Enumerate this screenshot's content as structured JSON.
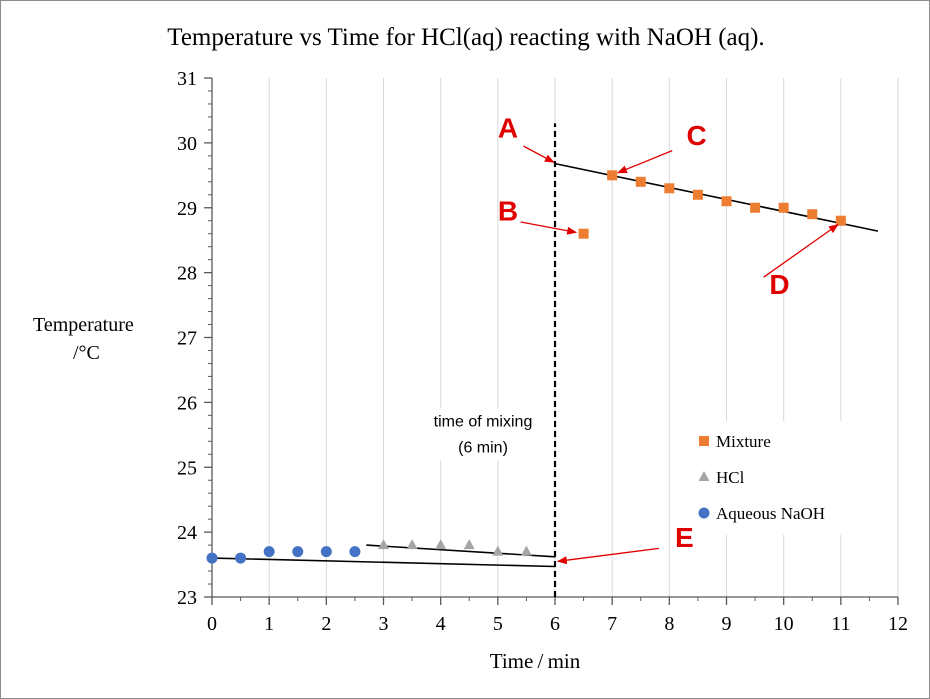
{
  "chart_data": {
    "type": "scatter",
    "title": "Temperature vs Time for HCl(aq) reacting with  NaOH (aq).",
    "xlabel": "Time / min",
    "ylabel_line1": "Temperature",
    "ylabel_line2": "/°C",
    "xlim": [
      0,
      12
    ],
    "ylim": [
      23,
      31
    ],
    "x_ticks": [
      0,
      1,
      2,
      3,
      4,
      5,
      6,
      7,
      8,
      9,
      10,
      11,
      12
    ],
    "y_ticks": [
      23,
      24,
      25,
      26,
      27,
      28,
      29,
      30,
      31
    ],
    "grid": "vertical",
    "series": [
      {
        "name": "Aqueous NaOH",
        "marker": "circle",
        "color": "#4472c4",
        "points": [
          [
            0,
            23.6
          ],
          [
            0.5,
            23.6
          ],
          [
            1,
            23.7
          ],
          [
            1.5,
            23.7
          ],
          [
            2,
            23.7
          ],
          [
            2.5,
            23.7
          ]
        ]
      },
      {
        "name": "HCl",
        "marker": "triangle",
        "color": "#a5a5a5",
        "points": [
          [
            3,
            23.8
          ],
          [
            3.5,
            23.8
          ],
          [
            4,
            23.8
          ],
          [
            4.5,
            23.8
          ],
          [
            5,
            23.7
          ],
          [
            5.5,
            23.7
          ]
        ]
      },
      {
        "name": "Mixture",
        "marker": "square",
        "color": "#ed7d31",
        "points": [
          [
            6.5,
            28.6
          ],
          [
            7,
            29.5
          ],
          [
            7.5,
            29.4
          ],
          [
            8,
            29.3
          ],
          [
            8.5,
            29.2
          ],
          [
            9,
            29.1
          ],
          [
            9.5,
            29.0
          ],
          [
            10,
            29.0
          ],
          [
            10.5,
            28.9
          ],
          [
            11,
            28.8
          ]
        ]
      }
    ],
    "legend": {
      "placement": "lower-right",
      "order": [
        "Mixture",
        "HCl",
        "Aqueous NaOH"
      ]
    },
    "trend_lines": [
      {
        "name": "mixture-trend",
        "from": [
          6,
          29.68
        ],
        "to": [
          11.65,
          28.64
        ]
      },
      {
        "name": "naoh-trend",
        "from": [
          0,
          23.6
        ],
        "to": [
          6,
          23.47
        ]
      },
      {
        "name": "hcl-trend",
        "from": [
          2.7,
          23.8
        ],
        "to": [
          6,
          23.62
        ]
      }
    ],
    "mixing_line": {
      "x": 6,
      "from_y": 23,
      "to_y": 30.3,
      "label_line1": "time of mixing",
      "label_line2": "(6 min)",
      "label_at": [
        6,
        25.6
      ]
    },
    "annotations": [
      {
        "label": "A",
        "label_at": [
          5.0,
          30.08
        ],
        "arrow_from": [
          5.45,
          29.95
        ],
        "arrow_to": [
          5.98,
          29.7
        ]
      },
      {
        "label": "B",
        "label_at": [
          5.0,
          28.8
        ],
        "arrow_from": [
          5.4,
          28.78
        ],
        "arrow_to": [
          6.37,
          28.62
        ]
      },
      {
        "label": "C",
        "label_at": [
          8.3,
          29.97
        ],
        "arrow_from": [
          8.05,
          29.88
        ],
        "arrow_to": [
          7.1,
          29.54
        ]
      },
      {
        "label": "D",
        "label_at": [
          9.75,
          27.67
        ],
        "arrow_from": [
          9.65,
          27.93
        ],
        "arrow_to": [
          10.95,
          28.74
        ]
      },
      {
        "label": "E",
        "label_at": [
          8.1,
          23.77
        ],
        "arrow_from": [
          7.82,
          23.75
        ],
        "arrow_to": [
          6.05,
          23.55
        ]
      }
    ],
    "colors": {
      "annotation": "#e00000",
      "axis": "#595959",
      "grid": "#d9d9d9",
      "trend": "#000000"
    }
  }
}
